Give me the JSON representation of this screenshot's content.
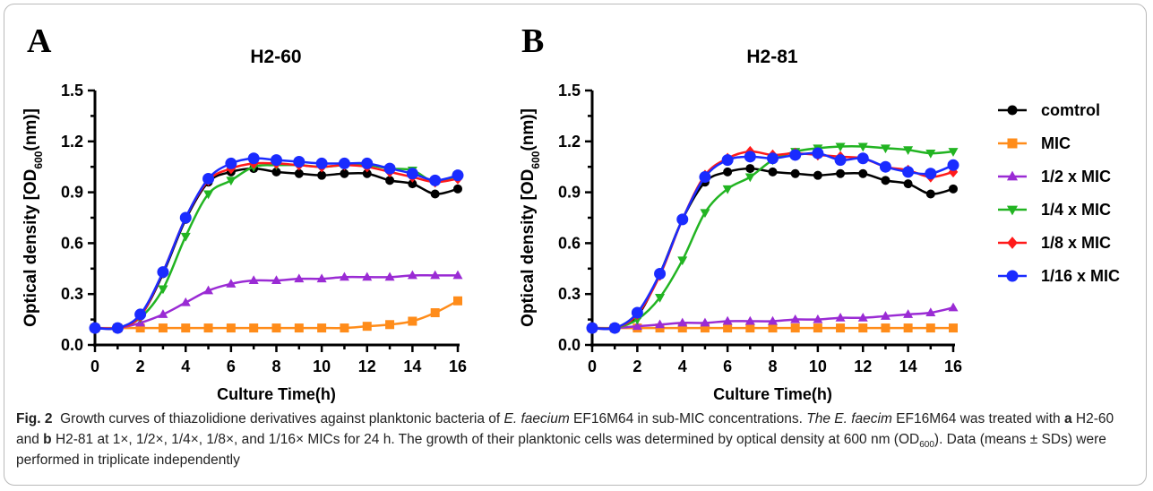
{
  "charts": [
    {
      "panel_letter": "A",
      "title": "H2-60",
      "xlabel": "Culture Time(h)",
      "ylabel_pre": "Optical density [OD",
      "ylabel_sub": "600",
      "ylabel_post": "(nm)]"
    },
    {
      "panel_letter": "B",
      "title": "H2-81",
      "xlabel": "Culture Time(h)",
      "ylabel_pre": "Optical density [OD",
      "ylabel_sub": "600",
      "ylabel_post": "(nm)]"
    }
  ],
  "legend": {
    "placement": "right",
    "entries": [
      "comtrol",
      "MIC",
      "1/2 x MIC",
      "1/4 x MIC",
      "1/8 x MIC",
      "1/16 x MIC"
    ]
  },
  "series_style": [
    {
      "color": "#000000",
      "marker": "circle"
    },
    {
      "color": "#ff8c1a",
      "marker": "square"
    },
    {
      "color": "#9a2bd4",
      "marker": "triangle-up"
    },
    {
      "color": "#22b422",
      "marker": "triangle-down"
    },
    {
      "color": "#ff1a1a",
      "marker": "diamond"
    },
    {
      "color": "#1a2bff",
      "marker": "circle"
    }
  ],
  "chart_data": [
    {
      "type": "line",
      "title": "H2-60",
      "xlabel": "Culture Time(h)",
      "ylabel": "Optical density [OD600(nm)]",
      "xlim": [
        0,
        16
      ],
      "ylim": [
        0,
        1.5
      ],
      "xticks": [
        "0",
        "2",
        "4",
        "6",
        "8",
        "10",
        "12",
        "14",
        "16"
      ],
      "yticks": [
        "0.0",
        "0.3",
        "0.6",
        "0.9",
        "1.2",
        "1.5"
      ],
      "grid": false,
      "x": [
        0,
        1,
        2,
        3,
        4,
        5,
        6,
        7,
        8,
        9,
        10,
        11,
        12,
        13,
        14,
        15,
        16
      ],
      "series": [
        {
          "name": "comtrol",
          "values": [
            0.1,
            0.1,
            0.17,
            0.42,
            0.74,
            0.96,
            1.02,
            1.04,
            1.02,
            1.01,
            1.0,
            1.01,
            1.01,
            0.97,
            0.95,
            0.89,
            0.92
          ]
        },
        {
          "name": "MIC",
          "values": [
            0.1,
            0.1,
            0.1,
            0.1,
            0.1,
            0.1,
            0.1,
            0.1,
            0.1,
            0.1,
            0.1,
            0.1,
            0.11,
            0.12,
            0.14,
            0.19,
            0.26
          ]
        },
        {
          "name": "1/2 x MIC",
          "values": [
            0.1,
            0.1,
            0.13,
            0.18,
            0.25,
            0.32,
            0.36,
            0.38,
            0.38,
            0.39,
            0.39,
            0.4,
            0.4,
            0.4,
            0.41,
            0.41,
            0.41
          ]
        },
        {
          "name": "1/4 x MIC",
          "values": [
            0.1,
            0.1,
            0.16,
            0.33,
            0.64,
            0.89,
            0.97,
            1.05,
            1.06,
            1.06,
            1.05,
            1.06,
            1.06,
            1.04,
            1.03,
            0.96,
            1.0
          ]
        },
        {
          "name": "1/8 x MIC",
          "values": [
            0.1,
            0.1,
            0.17,
            0.43,
            0.75,
            0.97,
            1.04,
            1.07,
            1.07,
            1.06,
            1.05,
            1.06,
            1.05,
            1.02,
            0.99,
            0.96,
            0.98
          ]
        },
        {
          "name": "1/16 x MIC",
          "values": [
            0.1,
            0.1,
            0.18,
            0.43,
            0.75,
            0.98,
            1.07,
            1.1,
            1.09,
            1.08,
            1.07,
            1.07,
            1.07,
            1.04,
            1.01,
            0.97,
            1.0
          ]
        }
      ]
    },
    {
      "type": "line",
      "title": "H2-81",
      "xlabel": "Culture Time(h)",
      "ylabel": "Optical density [OD600(nm)]",
      "xlim": [
        0,
        16
      ],
      "ylim": [
        0,
        1.5
      ],
      "xticks": [
        "0",
        "2",
        "4",
        "6",
        "8",
        "10",
        "12",
        "14",
        "16"
      ],
      "yticks": [
        "0.0",
        "0.3",
        "0.6",
        "0.9",
        "1.2",
        "1.5"
      ],
      "grid": false,
      "x": [
        0,
        1,
        2,
        3,
        4,
        5,
        6,
        7,
        8,
        9,
        10,
        11,
        12,
        13,
        14,
        15,
        16
      ],
      "series": [
        {
          "name": "comtrol",
          "values": [
            0.1,
            0.1,
            0.17,
            0.42,
            0.74,
            0.96,
            1.02,
            1.04,
            1.02,
            1.01,
            1.0,
            1.01,
            1.01,
            0.97,
            0.95,
            0.89,
            0.92
          ]
        },
        {
          "name": "MIC",
          "values": [
            0.1,
            0.1,
            0.1,
            0.1,
            0.1,
            0.1,
            0.1,
            0.1,
            0.1,
            0.1,
            0.1,
            0.1,
            0.1,
            0.1,
            0.1,
            0.1,
            0.1
          ]
        },
        {
          "name": "1/2 x MIC",
          "values": [
            0.1,
            0.1,
            0.11,
            0.12,
            0.13,
            0.13,
            0.14,
            0.14,
            0.14,
            0.15,
            0.15,
            0.16,
            0.16,
            0.17,
            0.18,
            0.19,
            0.22
          ]
        },
        {
          "name": "1/4 x MIC",
          "values": [
            0.1,
            0.1,
            0.15,
            0.28,
            0.5,
            0.78,
            0.92,
            0.99,
            1.09,
            1.14,
            1.16,
            1.17,
            1.17,
            1.16,
            1.15,
            1.13,
            1.14
          ]
        },
        {
          "name": "1/8 x MIC",
          "values": [
            0.1,
            0.1,
            0.18,
            0.41,
            0.74,
            1.0,
            1.1,
            1.14,
            1.12,
            1.13,
            1.12,
            1.11,
            1.1,
            1.05,
            1.03,
            0.99,
            1.02
          ]
        },
        {
          "name": "1/16 x MIC",
          "values": [
            0.1,
            0.1,
            0.19,
            0.42,
            0.74,
            0.99,
            1.09,
            1.11,
            1.1,
            1.12,
            1.13,
            1.09,
            1.1,
            1.05,
            1.02,
            1.01,
            1.06
          ]
        }
      ]
    }
  ],
  "caption": {
    "label": "Fig. 2",
    "t1": "Growth curves of thiazolidione derivatives against planktonic bacteria of ",
    "species1": "E. faecium",
    "t2": " EF16M64 in sub-MIC concentrations. ",
    "italic_sentence": "The E. faecim",
    "t3": " EF16M64 was treated with ",
    "a": "a",
    "t4": " H2-60 and ",
    "b": "b",
    "t5": " H2-81 at 1×, 1/2×, 1/4×, 1/8×, and 1/16× MICs for 24 h. The growth of their planktonic cells was determined by optical density at 600 nm (OD",
    "sub": "600",
    "t6": "). Data (means ± SDs) were performed in triplicate independently"
  }
}
